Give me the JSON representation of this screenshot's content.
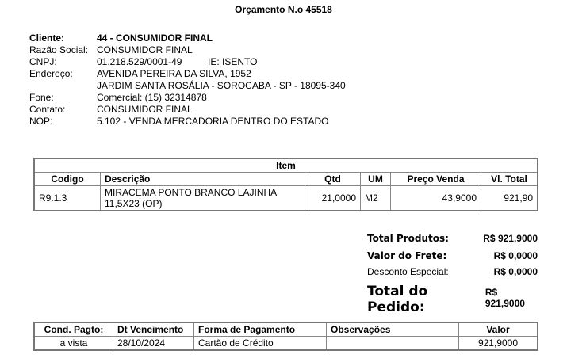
{
  "title": "Orçamento N.o 45518",
  "client": {
    "cliente_label": "Cliente:",
    "cliente": "44 - CONSUMIDOR FINAL",
    "razao_label": "Razão Social:",
    "razao": "CONSUMIDOR FINAL",
    "cnpj_label": "CNPJ:",
    "cnpj": "01.218.529/0001-49",
    "ie_label": "IE:",
    "ie": "ISENTO",
    "endereco_label": "Endereço:",
    "endereco1": "AVENIDA PEREIRA DA SILVA, 1952",
    "endereco2": "JARDIM SANTA ROSÁLIA - SOROCABA - SP - 18095-340",
    "fone_label": "Fone:",
    "fone": "Comercial: (15) 32314878",
    "contato_label": "Contato:",
    "contato": "CONSUMIDOR FINAL",
    "nop_label": "NOP:",
    "nop": "5.102 - VENDA MERCADORIA DENTRO DO ESTADO"
  },
  "items": {
    "caption": "Item",
    "headers": [
      "Codigo",
      "Descrição",
      "Qtd",
      "UM",
      "Preço Venda",
      "Vl. Total"
    ],
    "rows": [
      [
        "R9.1.3",
        "MIRACEMA PONTO BRANCO LAJINHA 11,5X23 (OP)",
        "21,0000",
        "M2",
        "43,9000",
        "921,90"
      ]
    ]
  },
  "totals": {
    "produtos_label": "Total Produtos:",
    "produtos": "R$ 921,9000",
    "frete_label": "Valor do Frete:",
    "frete": "R$ 0,0000",
    "desconto_label": "Desconto Especial:",
    "desconto": "R$ 0,0000",
    "pedido_label": "Total do Pedido:",
    "pedido": "R$ 921,9000"
  },
  "payment": {
    "headers": [
      "Cond. Pagto:",
      "Dt Vencimento",
      "Forma de Pagamento",
      "Observações",
      "Valor"
    ],
    "rows": [
      [
        "a vista",
        "28/10/2024",
        "Cartão de Crédito",
        "",
        "921,9000"
      ]
    ]
  }
}
